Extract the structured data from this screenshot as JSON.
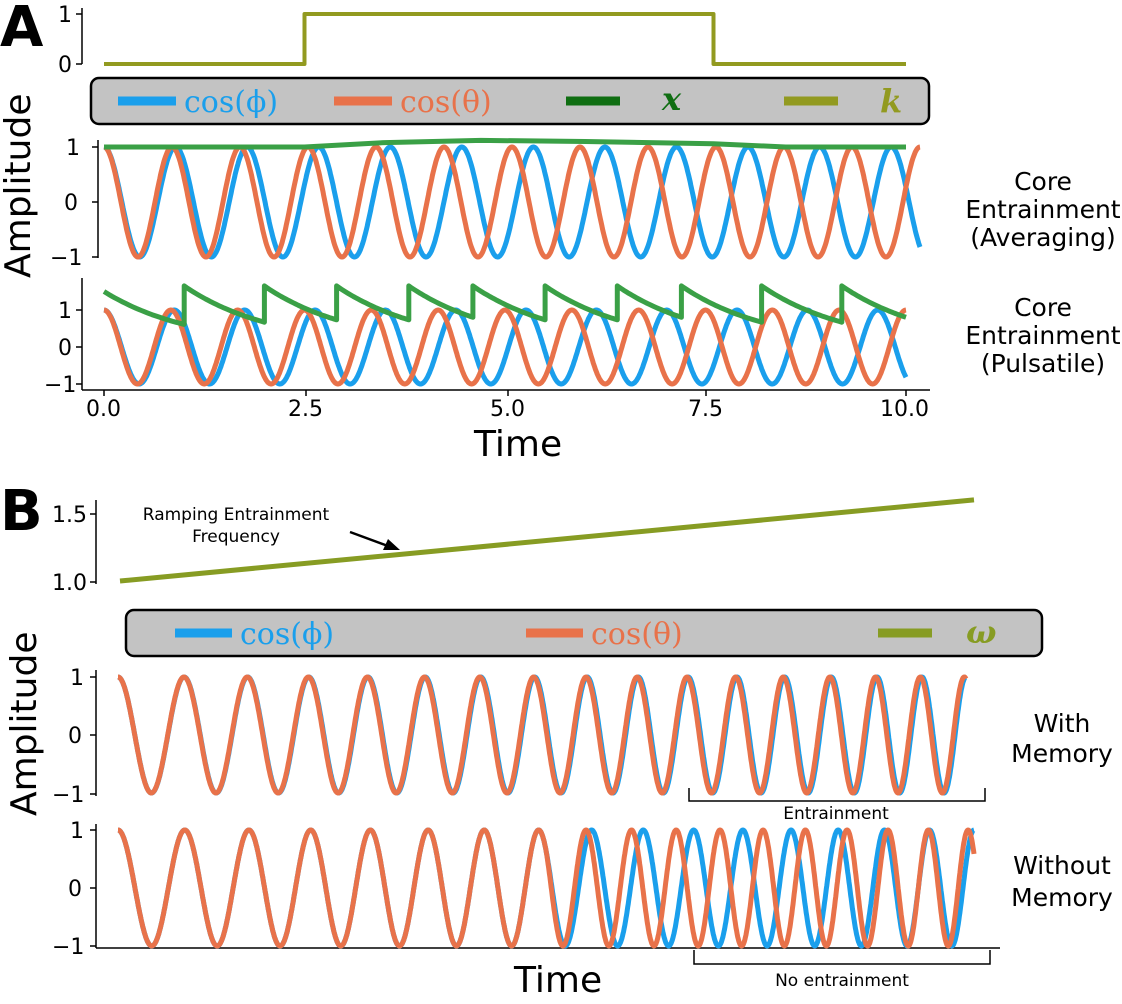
{
  "colors": {
    "phi": "#1a9fec",
    "theta": "#e8724a",
    "x": "#0f6e12",
    "k": "#929a20",
    "x_line": "#3aa046",
    "omega": "#879c23",
    "legend_bg": "#c3c3c3"
  },
  "panel_a": {
    "letter": "A",
    "legend": [
      {
        "key": "phi",
        "label": "cos(ϕ)"
      },
      {
        "key": "theta",
        "label": "cos(θ)"
      },
      {
        "key": "x",
        "label": "x"
      },
      {
        "key": "k",
        "label": "k"
      }
    ],
    "ylabel": "Amplitude",
    "xlabel": "Time",
    "row_labels": [
      [
        "Core",
        "Entrainment",
        "(Averaging)"
      ],
      [
        "Core",
        "Entrainment",
        "(Pulsatile)"
      ]
    ]
  },
  "panel_b": {
    "letter": "B",
    "legend": [
      {
        "key": "phi",
        "label": "cos(ϕ)"
      },
      {
        "key": "theta",
        "label": "cos(θ)"
      },
      {
        "key": "omega",
        "label": "ω"
      }
    ],
    "ylabel": "Amplitude",
    "xlabel": "Time",
    "annotation": [
      "Ramping Entrainment",
      "Frequency"
    ],
    "row_labels": [
      [
        "With",
        "Memory"
      ],
      [
        "Without",
        "Memory"
      ]
    ],
    "bracket_labels": [
      "Entrainment",
      "No entrainment"
    ]
  },
  "chart_data": [
    {
      "id": "A-k",
      "type": "line",
      "series": [
        {
          "name": "k",
          "x": [
            0,
            2.5,
            2.5,
            7.6,
            7.6,
            10.0
          ],
          "y": [
            0,
            0,
            1,
            1,
            0,
            0
          ]
        }
      ],
      "x_range": [
        0,
        10
      ],
      "ylim": [
        0,
        1
      ],
      "y_ticks": [
        "0",
        "1"
      ]
    },
    {
      "id": "A-averaging",
      "type": "line",
      "series": [
        {
          "name": "cos(ϕ)",
          "function": "cos",
          "frequency": 1.0,
          "x_range": [
            0,
            10
          ]
        },
        {
          "name": "cos(θ)",
          "function": "cos",
          "frequency": 1.2,
          "x_range": [
            0,
            10
          ]
        },
        {
          "name": "x",
          "x": [
            0,
            2.5,
            3.5,
            4.7,
            6.0,
            7.6,
            8.5,
            10.0
          ],
          "y": [
            1.0,
            1.0,
            1.08,
            1.12,
            1.1,
            1.06,
            1.0,
            1.0
          ]
        }
      ],
      "x_range": [
        0,
        10
      ],
      "ylim": [
        -1,
        1.1
      ],
      "y_ticks": [
        "1",
        "0",
        "−1"
      ]
    },
    {
      "id": "A-pulsatile",
      "type": "line",
      "series": [
        {
          "name": "cos(ϕ)",
          "function": "cos",
          "frequency": 1.0,
          "x_range": [
            0,
            10
          ]
        },
        {
          "name": "cos(θ)",
          "function": "cos",
          "frequency": 1.2,
          "x_range": [
            0,
            10
          ]
        },
        {
          "name": "x",
          "pulse_times": [
            1.0,
            2.0,
            2.9,
            3.8,
            4.6,
            5.5,
            6.4,
            7.2,
            8.2,
            9.2
          ],
          "start_value": 1.5,
          "pulse_top": 1.65,
          "decay_rate": 0.9
        }
      ],
      "x_range": [
        0,
        10
      ],
      "ylim": [
        -1,
        1.7
      ],
      "x_ticks": [
        "0.0",
        "2.5",
        "5.0",
        "7.5",
        "10.0"
      ],
      "y_ticks": [
        "1",
        "0",
        "−1"
      ]
    },
    {
      "id": "B-omega",
      "type": "line",
      "series": [
        {
          "name": "ω",
          "x": [
            0,
            1
          ],
          "y": [
            1.0,
            1.57
          ]
        }
      ],
      "ylim": [
        1.0,
        1.6
      ],
      "y_ticks": [
        "1.5",
        "1.0"
      ]
    },
    {
      "id": "B-with-memory",
      "type": "line",
      "series": [
        {
          "name": "cos(ϕ)",
          "function": "cos",
          "freq_start": 1.0,
          "freq_end": 1.55,
          "cycles": 16
        },
        {
          "name": "cos(θ)",
          "function": "cos",
          "freq_start": 1.0,
          "freq_end": 1.55,
          "cycles": 16,
          "lock": "entrained"
        }
      ],
      "ylim": [
        -1,
        1
      ],
      "y_ticks": [
        "1",
        "0",
        "−1"
      ]
    },
    {
      "id": "B-without-memory",
      "type": "line",
      "series": [
        {
          "name": "cos(ϕ)",
          "function": "cos",
          "freq_start": 1.0,
          "freq_end": 1.55,
          "cycles": 16
        },
        {
          "name": "cos(θ)",
          "function": "cos",
          "frequency": "free-running",
          "lock": "lost"
        }
      ],
      "ylim": [
        -1,
        1
      ],
      "y_ticks": [
        "1",
        "0",
        "−1"
      ]
    }
  ]
}
